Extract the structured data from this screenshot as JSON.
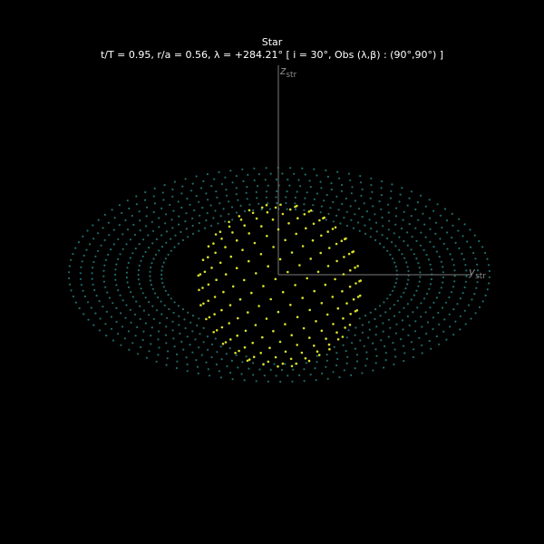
{
  "header": {
    "title": "Star",
    "subtitle": "t/T = 0.95, r/a = 0.56, λ = +284.21°  [ i = 30°, Obs (λ,β) : (90°,90°) ]"
  },
  "axes": {
    "z_label": "z",
    "z_subscript": "str",
    "y_label": "y",
    "y_subscript": "str"
  },
  "colors": {
    "background": "#000000",
    "star_dots": "#d7e02a",
    "disk_dots": "#1f6b6b",
    "axis_lines": "#7a7a7a"
  },
  "diagram": {
    "star_orientation": "inclined 30° toward observer",
    "disk_shape": "elliptical annulus",
    "observer": "(90°, 90°)"
  }
}
